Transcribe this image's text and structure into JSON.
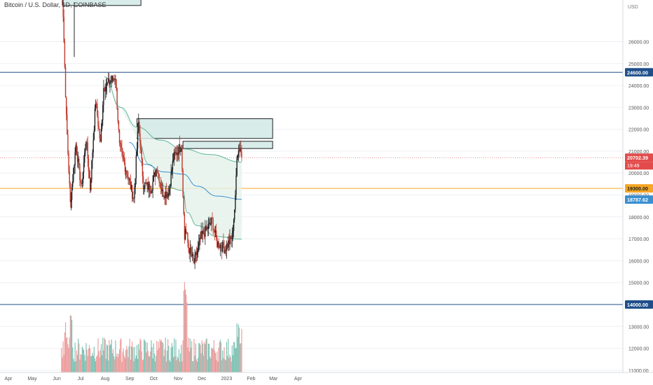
{
  "title": "Bitcoin / U.S. Dollar, 1D, COINBASE",
  "currency": "USD",
  "colors": {
    "background": "#ffffff",
    "up_candle": "#1f2326",
    "down_candle": "#c0392b",
    "ma_green": "#5fb89a",
    "ma_blue": "#3a8fd0",
    "zone_fill": "#d8ecea",
    "zone_border": "#1b1f24",
    "level_blue": "#1e4f8a",
    "level_orange": "#f5a623",
    "price_line": "#e06666",
    "vol_up": "#7fc4b6",
    "vol_down": "#eea0a0",
    "grid": "#eef0f3"
  },
  "chart_data": {
    "type": "candlestick",
    "y_range": [
      10900,
      27900
    ],
    "y_ticks": [
      "11000.00",
      "12000.00",
      "13000.00",
      "14000.00",
      "15000.00",
      "16000.00",
      "17000.00",
      "18000.00",
      "19000.00",
      "20000.00",
      "21000.00",
      "22000.00",
      "23000.00",
      "24000.00",
      "25000.00",
      "26000.00"
    ],
    "x_labels": [
      "Apr",
      "May",
      "Jun",
      "Jul",
      "Aug",
      "Sep",
      "Oct",
      "Nov",
      "Dec",
      "2023",
      "Feb",
      "Mar",
      "Apr"
    ],
    "price_levels": [
      {
        "label": "24600.00",
        "value": 24600,
        "color": "level_blue"
      },
      {
        "label": "19300.00",
        "value": 19300,
        "color": "level_orange"
      },
      {
        "label": "14000.00",
        "value": 14000,
        "color": "level_blue"
      }
    ],
    "current_price": {
      "label": "20702.39",
      "value": 20702.39,
      "countdown": "19:49"
    },
    "ma_label": {
      "label": "18787.62",
      "value": 18787.62
    },
    "zones": [
      {
        "start": "2022-06-08",
        "end": "2022-09-15",
        "low": 27650,
        "high": 28200
      },
      {
        "start": "2022-09-10",
        "end": "2023-02-28",
        "low": 21580,
        "high": 22480
      },
      {
        "start": "2022-11-07",
        "end": "2023-02-28",
        "low": 21120,
        "high": 21450
      }
    ],
    "anchor_key": [
      {
        "date": "2022-06-06",
        "price": 31000
      },
      {
        "date": "2022-06-10",
        "price": 26000
      },
      {
        "date": "2022-06-13",
        "price": 22500
      },
      {
        "date": "2022-06-18",
        "price": 18600
      },
      {
        "date": "2022-06-25",
        "price": 21300
      },
      {
        "date": "2022-07-02",
        "price": 19300
      },
      {
        "date": "2022-07-08",
        "price": 21600
      },
      {
        "date": "2022-07-13",
        "price": 19300
      },
      {
        "date": "2022-07-20",
        "price": 23300
      },
      {
        "date": "2022-07-26",
        "price": 21300
      },
      {
        "date": "2022-07-30",
        "price": 23900
      },
      {
        "date": "2022-08-14",
        "price": 24400
      },
      {
        "date": "2022-08-19",
        "price": 21200
      },
      {
        "date": "2022-08-30",
        "price": 19800
      },
      {
        "date": "2022-09-06",
        "price": 18800
      },
      {
        "date": "2022-09-12",
        "price": 22300
      },
      {
        "date": "2022-09-18",
        "price": 19500
      },
      {
        "date": "2022-09-28",
        "price": 19300
      },
      {
        "date": "2022-10-05",
        "price": 20300
      },
      {
        "date": "2022-10-12",
        "price": 19100
      },
      {
        "date": "2022-10-20",
        "price": 19100
      },
      {
        "date": "2022-10-26",
        "price": 20700
      },
      {
        "date": "2022-11-05",
        "price": 21300
      },
      {
        "date": "2022-11-09",
        "price": 17000
      },
      {
        "date": "2022-11-10",
        "price": 17500
      },
      {
        "date": "2022-11-14",
        "price": 16600
      },
      {
        "date": "2022-11-21",
        "price": 15900
      },
      {
        "date": "2022-11-30",
        "price": 17100
      },
      {
        "date": "2022-12-14",
        "price": 17800
      },
      {
        "date": "2022-12-20",
        "price": 16800
      },
      {
        "date": "2022-12-30",
        "price": 16550
      },
      {
        "date": "2023-01-08",
        "price": 17100
      },
      {
        "date": "2023-01-12",
        "price": 18800
      },
      {
        "date": "2023-01-14",
        "price": 20900
      },
      {
        "date": "2023-01-18",
        "price": 21200
      },
      {
        "date": "2023-01-20",
        "price": 20700
      }
    ],
    "ma_green_points": [
      {
        "date": "2022-07-31",
        "price": 24400
      },
      {
        "date": "2022-08-20",
        "price": 23000
      },
      {
        "date": "2022-09-10",
        "price": 22100
      },
      {
        "date": "2022-10-10",
        "price": 21500
      },
      {
        "date": "2022-11-07",
        "price": 21100
      },
      {
        "date": "2022-12-10",
        "price": 20850
      },
      {
        "date": "2023-01-20",
        "price": 20500
      }
    ],
    "ma_blue_points": [
      {
        "date": "2022-08-31",
        "price": 21400
      },
      {
        "date": "2022-09-20",
        "price": 20400
      },
      {
        "date": "2022-10-15",
        "price": 20050
      },
      {
        "date": "2022-11-07",
        "price": 19950
      },
      {
        "date": "2022-11-25",
        "price": 19400
      },
      {
        "date": "2022-12-20",
        "price": 18950
      },
      {
        "date": "2023-01-20",
        "price": 18800
      }
    ],
    "ma_lower_points": [
      {
        "date": "2022-09-10",
        "price": 21600
      },
      {
        "date": "2022-09-25",
        "price": 20400
      },
      {
        "date": "2022-10-15",
        "price": 19400
      },
      {
        "date": "2022-11-07",
        "price": 19200
      },
      {
        "date": "2022-11-12",
        "price": 18200
      },
      {
        "date": "2022-11-25",
        "price": 17600
      },
      {
        "date": "2022-12-20",
        "price": 17100
      },
      {
        "date": "2023-01-20",
        "price": 16980
      }
    ]
  }
}
